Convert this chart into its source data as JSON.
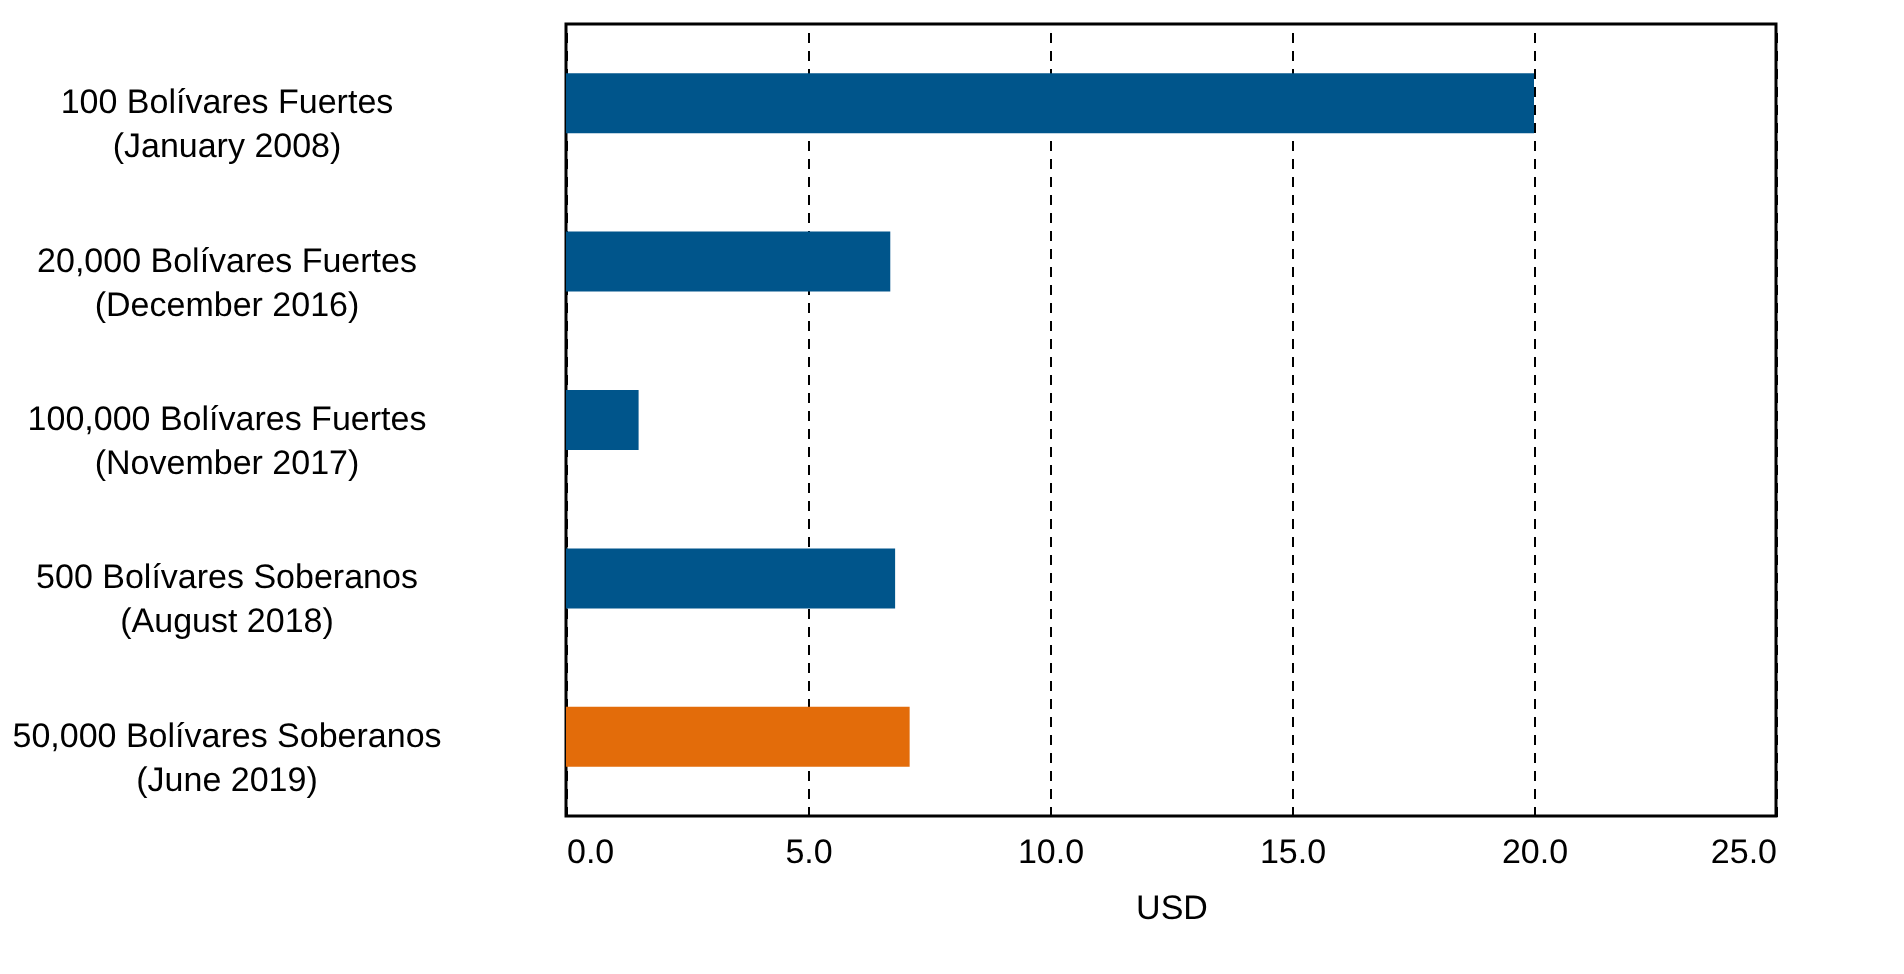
{
  "chart_data": {
    "type": "bar",
    "orientation": "horizontal",
    "xlabel": "USD",
    "categories": [
      "100 Bolívares Fuertes\n(January 2008)",
      "20,000 Bolívares Fuertes\n(December 2016)",
      "100,000 Bolívares Fuertes\n(November 2017)",
      "500 Bolívares Soberanos\n(August 2018)",
      "50,000 Bolívares Soberanos\n(June 2019)"
    ],
    "values": [
      20.0,
      6.7,
      1.5,
      6.8,
      7.1
    ],
    "colors": [
      "#00558b",
      "#00558b",
      "#00558b",
      "#00558b",
      "#e36c0a"
    ],
    "xlim": [
      0,
      25
    ],
    "xticks": [
      {
        "value": 0,
        "label": "0.0"
      },
      {
        "value": 5,
        "label": "5.0"
      },
      {
        "value": 10,
        "label": "10.0"
      },
      {
        "value": 15,
        "label": "15.0"
      },
      {
        "value": 20,
        "label": "20.0"
      },
      {
        "value": 25,
        "label": "25.0"
      }
    ],
    "grid": "x",
    "line_style": "dashed"
  }
}
